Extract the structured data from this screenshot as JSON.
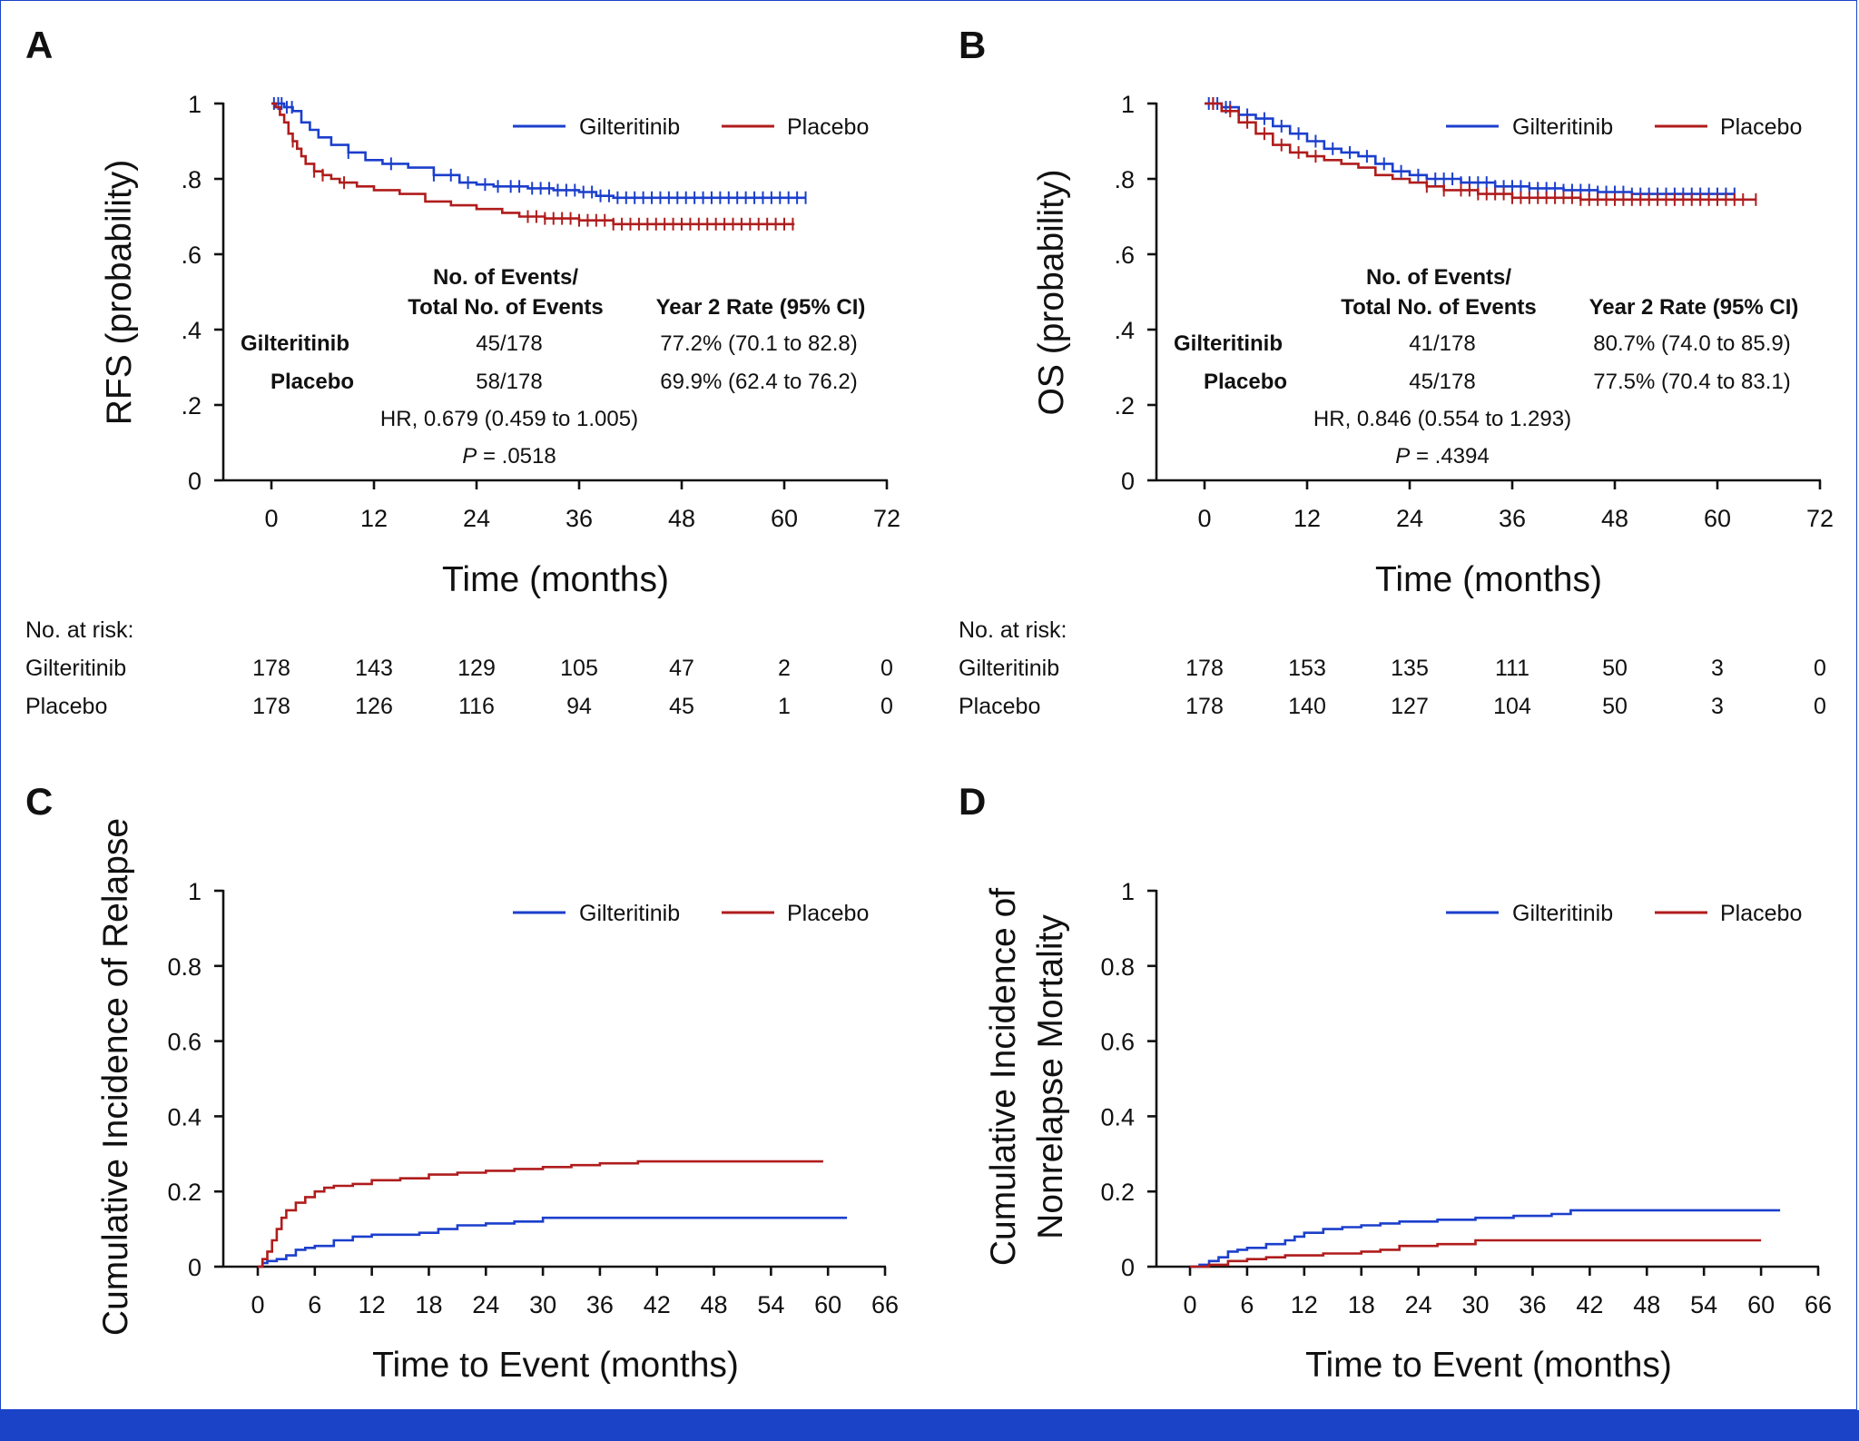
{
  "colors": {
    "gilteritinib": "#1b3fcc",
    "placebo": "#b01c1c",
    "frame": "#1b43c8"
  },
  "risk_header": "No. at risk:",
  "chart_data": [
    {
      "type": "line",
      "letter": "A",
      "ylabel": "RFS (probability)",
      "xlabel": "Time (months)",
      "xlim": [
        0,
        72
      ],
      "ylim": [
        0,
        1
      ],
      "xticks": [
        0,
        12,
        24,
        36,
        48,
        60,
        72
      ],
      "yticks": [
        0,
        0.2,
        0.4,
        0.6,
        0.8,
        1
      ],
      "ytick_labels": [
        "0",
        ".2",
        ".4",
        ".6",
        ".8",
        "1"
      ],
      "legend": [
        "Gilteritinib",
        "Placebo"
      ],
      "series": [
        {
          "name": "Gilteritinib",
          "points": [
            [
              0,
              1
            ],
            [
              0.7,
              1
            ],
            [
              1.5,
              0.99
            ],
            [
              2.5,
              0.98
            ],
            [
              3.5,
              0.95
            ],
            [
              4.5,
              0.93
            ],
            [
              5.5,
              0.91
            ],
            [
              7,
              0.89
            ],
            [
              9,
              0.87
            ],
            [
              11,
              0.85
            ],
            [
              13,
              0.84
            ],
            [
              16,
              0.83
            ],
            [
              19,
              0.81
            ],
            [
              22,
              0.79
            ],
            [
              24,
              0.785
            ],
            [
              26,
              0.78
            ],
            [
              30,
              0.775
            ],
            [
              33,
              0.77
            ],
            [
              36,
              0.765
            ],
            [
              38,
              0.755
            ],
            [
              40,
              0.75
            ],
            [
              45,
              0.75
            ],
            [
              62.6,
              0.75
            ]
          ],
          "censor_times": [
            0.3,
            0.8,
            1.2,
            1.8,
            2.4,
            9,
            14,
            19,
            21,
            23,
            25,
            26.5,
            28,
            29,
            30.5,
            31.5,
            32.5,
            33.5,
            34.5,
            35.5,
            36.5,
            37.5,
            38.5,
            39.5,
            40.5,
            41.5,
            42.5,
            43.5,
            44.5,
            45.5,
            46.5,
            47.5,
            48.5,
            49.5,
            50.5,
            51.5,
            52.5,
            53.5,
            54.5,
            55.5,
            56.5,
            57.5,
            58.5,
            59.5,
            60.5,
            61.5,
            62.5
          ]
        },
        {
          "name": "Placebo",
          "points": [
            [
              0,
              1
            ],
            [
              0.5,
              0.99
            ],
            [
              1,
              0.97
            ],
            [
              1.5,
              0.95
            ],
            [
              2,
              0.92
            ],
            [
              2.5,
              0.9
            ],
            [
              3,
              0.88
            ],
            [
              3.5,
              0.86
            ],
            [
              4,
              0.84
            ],
            [
              5,
              0.82
            ],
            [
              6,
              0.81
            ],
            [
              7,
              0.8
            ],
            [
              8,
              0.79
            ],
            [
              10,
              0.78
            ],
            [
              12,
              0.77
            ],
            [
              15,
              0.76
            ],
            [
              18,
              0.74
            ],
            [
              21,
              0.73
            ],
            [
              24,
              0.72
            ],
            [
              27,
              0.71
            ],
            [
              29,
              0.7
            ],
            [
              32,
              0.695
            ],
            [
              36,
              0.69
            ],
            [
              40,
              0.68
            ],
            [
              45,
              0.68
            ],
            [
              61.2,
              0.68
            ]
          ],
          "censor_times": [
            2.5,
            5,
            6,
            8.5,
            30,
            31,
            32,
            33,
            34,
            35,
            36,
            37,
            38,
            39,
            40,
            41,
            42,
            43,
            44,
            45,
            46,
            47,
            48,
            49,
            50,
            51,
            52,
            53,
            54,
            55,
            56,
            57,
            58,
            59,
            60,
            61
          ]
        }
      ],
      "events_table": {
        "col1_header": [
          "No. of Events/",
          "Total No. of Events"
        ],
        "col2_header": "Year 2 Rate (95% CI)",
        "rows": [
          {
            "arm": "Gilteritinib",
            "events": "45/178",
            "rate": "77.2% (70.1 to 82.8)"
          },
          {
            "arm": "Placebo",
            "events": "58/178",
            "rate": "69.9% (62.4 to 76.2)"
          }
        ],
        "hr": "HR, 0.679 (0.459 to 1.005)",
        "p_label": "P",
        "p_value": " = .0518"
      },
      "at_risk": [
        {
          "name": "Gilteritinib",
          "counts": [
            "178",
            "143",
            "129",
            "105",
            "47",
            "2",
            "0"
          ]
        },
        {
          "name": "Placebo",
          "counts": [
            "178",
            "126",
            "116",
            "94",
            "45",
            "1",
            "0"
          ]
        }
      ]
    },
    {
      "type": "line",
      "letter": "B",
      "ylabel": "OS (probability)",
      "xlabel": "Time (months)",
      "xlim": [
        0,
        72
      ],
      "ylim": [
        0,
        1
      ],
      "xticks": [
        0,
        12,
        24,
        36,
        48,
        60,
        72
      ],
      "yticks": [
        0,
        0.2,
        0.4,
        0.6,
        0.8,
        1
      ],
      "ytick_labels": [
        "0",
        ".2",
        ".4",
        ".6",
        ".8",
        "1"
      ],
      "legend": [
        "Gilteritinib",
        "Placebo"
      ],
      "series": [
        {
          "name": "Gilteritinib",
          "points": [
            [
              0,
              1
            ],
            [
              2,
              0.99
            ],
            [
              4,
              0.97
            ],
            [
              6,
              0.96
            ],
            [
              8,
              0.94
            ],
            [
              10,
              0.92
            ],
            [
              12,
              0.9
            ],
            [
              14,
              0.88
            ],
            [
              16,
              0.87
            ],
            [
              18,
              0.86
            ],
            [
              20,
              0.84
            ],
            [
              22,
              0.82
            ],
            [
              24,
              0.81
            ],
            [
              26,
              0.8
            ],
            [
              30,
              0.79
            ],
            [
              34,
              0.78
            ],
            [
              38,
              0.775
            ],
            [
              42,
              0.77
            ],
            [
              46,
              0.765
            ],
            [
              50,
              0.76
            ],
            [
              62,
              0.76
            ]
          ],
          "censor_times": [
            0.5,
            1,
            1.5,
            2.5,
            3,
            5,
            7,
            9,
            11,
            13,
            15,
            17,
            19,
            21,
            23,
            25,
            27,
            28,
            29,
            30,
            31,
            32,
            33,
            34,
            35,
            36,
            37,
            38,
            39,
            40,
            41,
            42,
            43,
            44,
            45,
            46,
            47,
            48,
            49,
            50,
            51,
            52,
            53,
            54,
            55,
            56,
            57,
            58,
            59,
            60,
            61,
            62
          ]
        },
        {
          "name": "Placebo",
          "points": [
            [
              0,
              1
            ],
            [
              2,
              0.98
            ],
            [
              4,
              0.95
            ],
            [
              6,
              0.92
            ],
            [
              8,
              0.89
            ],
            [
              10,
              0.87
            ],
            [
              12,
              0.86
            ],
            [
              14,
              0.85
            ],
            [
              16,
              0.84
            ],
            [
              18,
              0.83
            ],
            [
              20,
              0.81
            ],
            [
              22,
              0.8
            ],
            [
              24,
              0.79
            ],
            [
              26,
              0.78
            ],
            [
              28,
              0.77
            ],
            [
              32,
              0.76
            ],
            [
              36,
              0.75
            ],
            [
              44,
              0.745
            ],
            [
              64.6,
              0.745
            ]
          ],
          "censor_times": [
            1,
            3,
            5,
            7,
            9,
            11,
            13,
            26,
            28,
            30,
            31,
            32,
            33,
            34,
            35,
            36,
            37,
            38,
            39,
            40,
            41,
            42,
            43,
            44,
            45,
            46,
            47,
            48,
            49,
            50,
            51,
            52,
            53,
            54,
            55,
            56,
            57,
            58,
            59,
            60,
            61,
            62,
            63,
            64.5
          ]
        }
      ],
      "events_table": {
        "col1_header": [
          "No. of Events/",
          "Total No. of Events"
        ],
        "col2_header": "Year 2 Rate (95% CI)",
        "rows": [
          {
            "arm": "Gilteritinib",
            "events": "41/178",
            "rate": "80.7% (74.0 to 85.9)"
          },
          {
            "arm": "Placebo",
            "events": "45/178",
            "rate": "77.5% (70.4 to 83.1)"
          }
        ],
        "hr": "HR, 0.846 (0.554 to 1.293)",
        "p_label": "P",
        "p_value": " = .4394"
      },
      "at_risk": [
        {
          "name": "Gilteritinib",
          "counts": [
            "178",
            "153",
            "135",
            "111",
            "50",
            "3",
            "0"
          ]
        },
        {
          "name": "Placebo",
          "counts": [
            "178",
            "140",
            "127",
            "104",
            "50",
            "3",
            "0"
          ]
        }
      ]
    },
    {
      "type": "line",
      "letter": "C",
      "ylabel": [
        "Cumulative Incidence of Relapse"
      ],
      "xlabel": "Time to Event (months)",
      "xlim": [
        0,
        66
      ],
      "ylim": [
        0,
        1
      ],
      "xticks": [
        0,
        6,
        12,
        18,
        24,
        30,
        36,
        42,
        48,
        54,
        60,
        66
      ],
      "yticks": [
        0,
        0.2,
        0.4,
        0.6,
        0.8,
        1
      ],
      "ytick_labels": [
        "0",
        "0.2",
        "0.4",
        "0.6",
        "0.8",
        "1"
      ],
      "legend": [
        "Gilteritinib",
        "Placebo"
      ],
      "series": [
        {
          "name": "Gilteritinib",
          "points": [
            [
              0,
              0
            ],
            [
              0.5,
              0.01
            ],
            [
              1,
              0.015
            ],
            [
              2,
              0.02
            ],
            [
              3,
              0.03
            ],
            [
              4,
              0.045
            ],
            [
              5,
              0.05
            ],
            [
              6,
              0.055
            ],
            [
              8,
              0.07
            ],
            [
              10,
              0.08
            ],
            [
              12,
              0.085
            ],
            [
              14,
              0.085
            ],
            [
              17,
              0.09
            ],
            [
              19,
              0.1
            ],
            [
              21,
              0.11
            ],
            [
              24,
              0.115
            ],
            [
              27,
              0.12
            ],
            [
              30,
              0.13
            ],
            [
              36,
              0.13
            ],
            [
              40,
              0.13
            ],
            [
              62,
              0.13
            ]
          ]
        },
        {
          "name": "Placebo",
          "points": [
            [
              0,
              0
            ],
            [
              0.5,
              0.02
            ],
            [
              1,
              0.04
            ],
            [
              1.5,
              0.07
            ],
            [
              2,
              0.1
            ],
            [
              2.5,
              0.13
            ],
            [
              3,
              0.15
            ],
            [
              4,
              0.17
            ],
            [
              5,
              0.185
            ],
            [
              6,
              0.2
            ],
            [
              7,
              0.21
            ],
            [
              8,
              0.215
            ],
            [
              10,
              0.22
            ],
            [
              12,
              0.23
            ],
            [
              15,
              0.235
            ],
            [
              18,
              0.245
            ],
            [
              21,
              0.25
            ],
            [
              24,
              0.255
            ],
            [
              27,
              0.26
            ],
            [
              30,
              0.265
            ],
            [
              33,
              0.27
            ],
            [
              36,
              0.275
            ],
            [
              40,
              0.28
            ],
            [
              59.5,
              0.28
            ]
          ]
        }
      ]
    },
    {
      "type": "line",
      "letter": "D",
      "ylabel": [
        "Cumulative Incidence of",
        "Nonrelapse Mortality"
      ],
      "xlabel": "Time to Event (months)",
      "xlim": [
        0,
        66
      ],
      "ylim": [
        0,
        1
      ],
      "xticks": [
        0,
        6,
        12,
        18,
        24,
        30,
        36,
        42,
        48,
        54,
        60,
        66
      ],
      "yticks": [
        0,
        0.2,
        0.4,
        0.6,
        0.8,
        1
      ],
      "ytick_labels": [
        "0",
        "0.2",
        "0.4",
        "0.6",
        "0.8",
        "1"
      ],
      "legend": [
        "Gilteritinib",
        "Placebo"
      ],
      "series": [
        {
          "name": "Gilteritinib",
          "points": [
            [
              0,
              0
            ],
            [
              1,
              0.005
            ],
            [
              2,
              0.015
            ],
            [
              3,
              0.025
            ],
            [
              4,
              0.04
            ],
            [
              5,
              0.045
            ],
            [
              6,
              0.05
            ],
            [
              8,
              0.06
            ],
            [
              10,
              0.07
            ],
            [
              11,
              0.08
            ],
            [
              12,
              0.09
            ],
            [
              14,
              0.1
            ],
            [
              16,
              0.105
            ],
            [
              18,
              0.11
            ],
            [
              20,
              0.115
            ],
            [
              22,
              0.12
            ],
            [
              26,
              0.125
            ],
            [
              30,
              0.13
            ],
            [
              34,
              0.135
            ],
            [
              38,
              0.14
            ],
            [
              40,
              0.15
            ],
            [
              62,
              0.15
            ]
          ]
        },
        {
          "name": "Placebo",
          "points": [
            [
              0,
              0
            ],
            [
              2,
              0.005
            ],
            [
              4,
              0.015
            ],
            [
              6,
              0.02
            ],
            [
              8,
              0.025
            ],
            [
              10,
              0.03
            ],
            [
              14,
              0.035
            ],
            [
              18,
              0.04
            ],
            [
              20,
              0.045
            ],
            [
              22,
              0.055
            ],
            [
              26,
              0.06
            ],
            [
              30,
              0.07
            ],
            [
              60,
              0.07
            ]
          ]
        }
      ]
    }
  ]
}
